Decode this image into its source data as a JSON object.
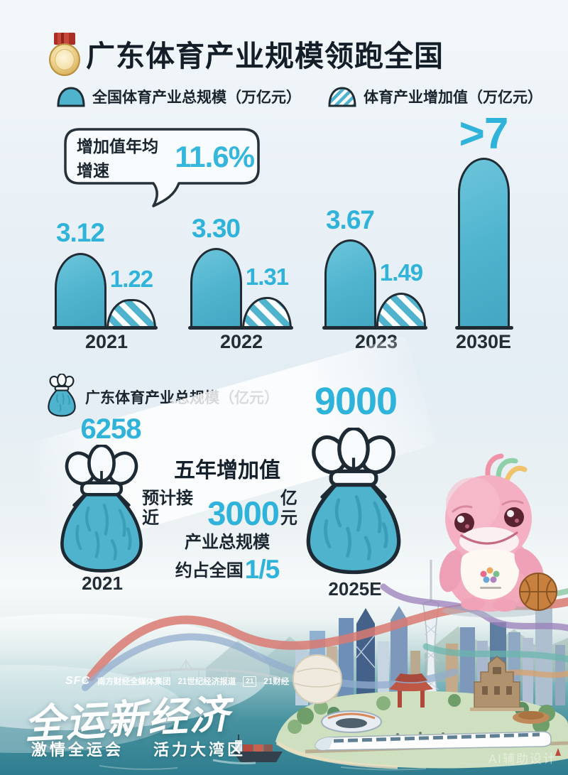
{
  "chart_data": [
    {
      "type": "bar",
      "title": "广东体育产业规模领跑全国",
      "legend": [
        "全国体育产业总规模（万亿元）",
        "体育产业增加值（万亿元）"
      ],
      "legend_position": "top",
      "annotation": {
        "label": "增加值年均增速",
        "value": "11.6%"
      },
      "categories": [
        "2021",
        "2022",
        "2023",
        "2030E"
      ],
      "series": [
        {
          "name": "全国体育产业总规模",
          "values": [
            3.12,
            3.3,
            3.67,
            7
          ],
          "display": [
            "3.12",
            "3.30",
            "3.67",
            ">7"
          ]
        },
        {
          "name": "体育产业增加值",
          "values": [
            1.22,
            1.31,
            1.49,
            null
          ],
          "display": [
            "1.22",
            "1.31",
            "1.49",
            null
          ]
        }
      ],
      "ylim": [
        0,
        7.5
      ],
      "grid": false
    },
    {
      "type": "bar",
      "title": "广东体育产业总规模（亿元）",
      "categories": [
        "2021",
        "2025E"
      ],
      "values": [
        6258,
        9000
      ],
      "display": [
        "6258",
        "9000"
      ],
      "highlight": {
        "line1": "五年增加值",
        "line2_pre": "预计接近",
        "line2_big": "3000",
        "line2_suf": "亿元",
        "line3": "产业总规模",
        "line4_pre": "约占全国",
        "line4_big": "1/5"
      }
    }
  ],
  "footer": {
    "brand_sfc": "SFC",
    "brand_group": "南方财经全媒体集团",
    "brand_21cbh": "21世纪经济报道",
    "brand_badge": "21",
    "brand_21caijing": "21财经",
    "slogan": "全运新经济",
    "sub_slogan_left": "激情全运会",
    "sub_slogan_right": "活力大湾区",
    "watermark": "AI辅助设计"
  },
  "colors": {
    "teal": "#4fb3ce",
    "teal_text": "#2fb3da",
    "ink": "#202b33",
    "sea": "#2f7f90",
    "mascot_pink": "#f2a9bc"
  }
}
